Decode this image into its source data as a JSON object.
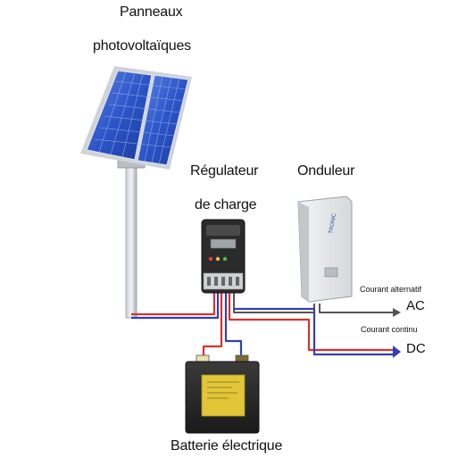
{
  "labels": {
    "panels_line1": "Panneaux",
    "panels_line2": "photovoltaïques",
    "regulator_line1": "Régulateur",
    "regulator_line2": "de charge",
    "inverter": "Onduleur",
    "battery": "Batterie électrique",
    "ac_caption": "Courant alternatif",
    "ac": "AC",
    "dc_caption": "Courant continu",
    "dc": "DC"
  },
  "colors": {
    "wire_red": "#d8332e",
    "wire_blue": "#2f3fb8",
    "wire_gray": "#555555",
    "panel_blue": "#2c55c8",
    "battery_yellow": "#e3c53a"
  },
  "icons": {
    "panels": "solar-panel-icon",
    "regulator": "charge-controller-icon",
    "inverter": "inverter-icon",
    "battery": "battery-icon"
  }
}
